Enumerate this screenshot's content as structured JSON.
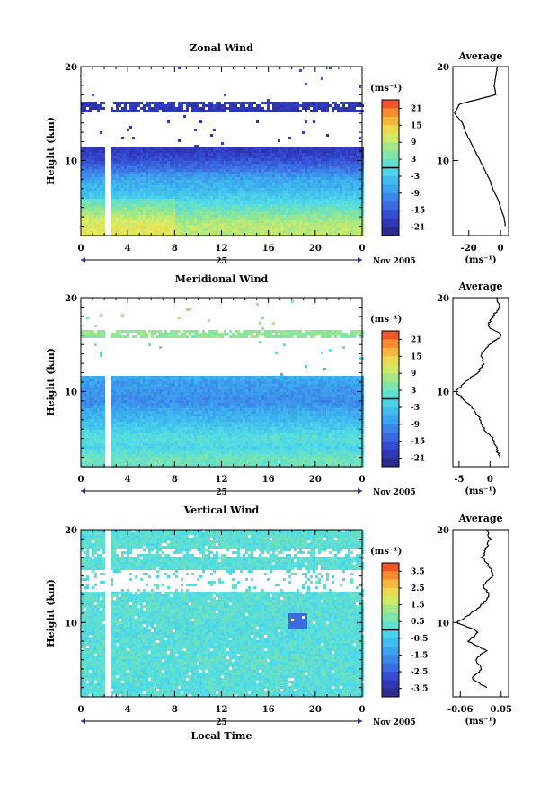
{
  "figure": {
    "date_label": "Nov 2005",
    "day_label": "25",
    "xlabel": "Local Time",
    "unit_label": "(ms⁻¹)",
    "average_title": "Average"
  },
  "chart_data": [
    {
      "type": "heatmap",
      "title": "Zonal Wind",
      "xlabel": "",
      "ylabel": "Height (km)",
      "xlim": [
        0,
        24
      ],
      "ylim": [
        2,
        20
      ],
      "xticks": [
        "0",
        "4",
        "8",
        "12",
        "16",
        "20",
        "0"
      ],
      "yticks": [
        "10",
        "20"
      ],
      "colorbar": {
        "ticks": [
          "21",
          "15",
          "9",
          "3",
          "-3",
          "-9",
          "-15",
          "-21"
        ],
        "min": -24,
        "max": 24
      },
      "gap_hours": [
        2.0,
        2.6
      ],
      "rows": [
        {
          "h": 3,
          "v": 9
        },
        {
          "h": 4,
          "v": 6
        },
        {
          "h": 5,
          "v": 2
        },
        {
          "h": 6,
          "v": -2
        },
        {
          "h": 7,
          "v": -5
        },
        {
          "h": 8,
          "v": -7
        },
        {
          "h": 9,
          "v": -12
        },
        {
          "h": 10,
          "v": -16
        },
        {
          "h": 11,
          "v": -19
        },
        {
          "h": 15.5,
          "v": -20
        },
        {
          "h": 17.5,
          "v": -16
        }
      ],
      "data_top_km": 11.5,
      "average_profile": {
        "xticks": [
          "-20",
          "0"
        ],
        "xlim": [
          -30,
          5
        ],
        "height": [
          3,
          4,
          5,
          6,
          7,
          8,
          9,
          10,
          11,
          12,
          13,
          14,
          15,
          16,
          17,
          18,
          19,
          20
        ],
        "value": [
          3,
          2,
          0,
          -2,
          -5,
          -7,
          -10,
          -13,
          -16,
          -19,
          -22,
          -24,
          -29,
          -26,
          -3,
          -4,
          -3,
          -2
        ]
      }
    },
    {
      "type": "heatmap",
      "title": "Meridional Wind",
      "xlabel": "",
      "ylabel": "Height (km)",
      "xlim": [
        0,
        24
      ],
      "ylim": [
        2,
        20
      ],
      "xticks": [
        "0",
        "4",
        "8",
        "12",
        "16",
        "20",
        "0"
      ],
      "yticks": [
        "10",
        "20"
      ],
      "colorbar": {
        "ticks": [
          "21",
          "15",
          "9",
          "3",
          "-3",
          "-9",
          "-15",
          "-21"
        ],
        "min": -24,
        "max": 24
      },
      "gap_hours": [
        2.0,
        2.6
      ],
      "rows": [
        {
          "h": 3,
          "v": 3
        },
        {
          "h": 4,
          "v": -1
        },
        {
          "h": 5,
          "v": 1
        },
        {
          "h": 6,
          "v": -2
        },
        {
          "h": 7,
          "v": -5
        },
        {
          "h": 8,
          "v": -7
        },
        {
          "h": 9,
          "v": -10
        },
        {
          "h": 10,
          "v": -9
        },
        {
          "h": 11,
          "v": -8
        },
        {
          "h": 16,
          "v": 6
        }
      ],
      "data_top_km": 11.8,
      "average_profile": {
        "xticks": [
          "-5",
          "0"
        ],
        "xlim": [
          -6,
          3
        ],
        "height": [
          3,
          4,
          5,
          6,
          7,
          8,
          9,
          10,
          11,
          12,
          13,
          14,
          15,
          16,
          17,
          18,
          19,
          20
        ],
        "value": [
          1.5,
          1,
          0.5,
          -1,
          -1.5,
          -2.5,
          -4,
          -5.5,
          -4,
          -2,
          -1,
          -1.5,
          0,
          2,
          -0.5,
          0.5,
          1.5,
          1
        ]
      }
    },
    {
      "type": "heatmap",
      "title": "Vertical Wind",
      "xlabel": "Local Time",
      "ylabel": "Height (km)",
      "xlim": [
        0,
        24
      ],
      "ylim": [
        2,
        20
      ],
      "xticks": [
        "0",
        "4",
        "8",
        "12",
        "16",
        "20",
        "0"
      ],
      "yticks": [
        "10",
        "20"
      ],
      "colorbar": {
        "ticks": [
          "3.5",
          "2.5",
          "1.5",
          "0.5",
          "-0.5",
          "-1.5",
          "-2.5",
          "-3.5"
        ],
        "min": -4,
        "max": 4
      },
      "gap_hours": [
        2.0,
        2.6
      ],
      "rows": [
        {
          "h": 3,
          "v": 0.1
        },
        {
          "h": 6,
          "v": 0.2
        },
        {
          "h": 9,
          "v": 0.1
        },
        {
          "h": 12,
          "v": 0.2
        },
        {
          "h": 15,
          "v": 0.1
        },
        {
          "h": 18,
          "v": 0.2
        }
      ],
      "data_top_km": 20,
      "average_profile": {
        "xticks": [
          "-0.06",
          "0.05"
        ],
        "xlim": [
          -0.08,
          0.07
        ],
        "height": [
          3,
          4,
          5,
          6,
          7,
          8,
          9,
          10,
          11,
          12,
          13,
          14,
          15,
          16,
          17,
          18,
          19,
          20
        ],
        "value": [
          0.01,
          -0.03,
          0.0,
          -0.02,
          0.01,
          -0.04,
          -0.01,
          -0.07,
          -0.03,
          0.0,
          0.02,
          0.0,
          0.03,
          0.02,
          0.0,
          0.01,
          0.02,
          0.01
        ]
      }
    }
  ]
}
